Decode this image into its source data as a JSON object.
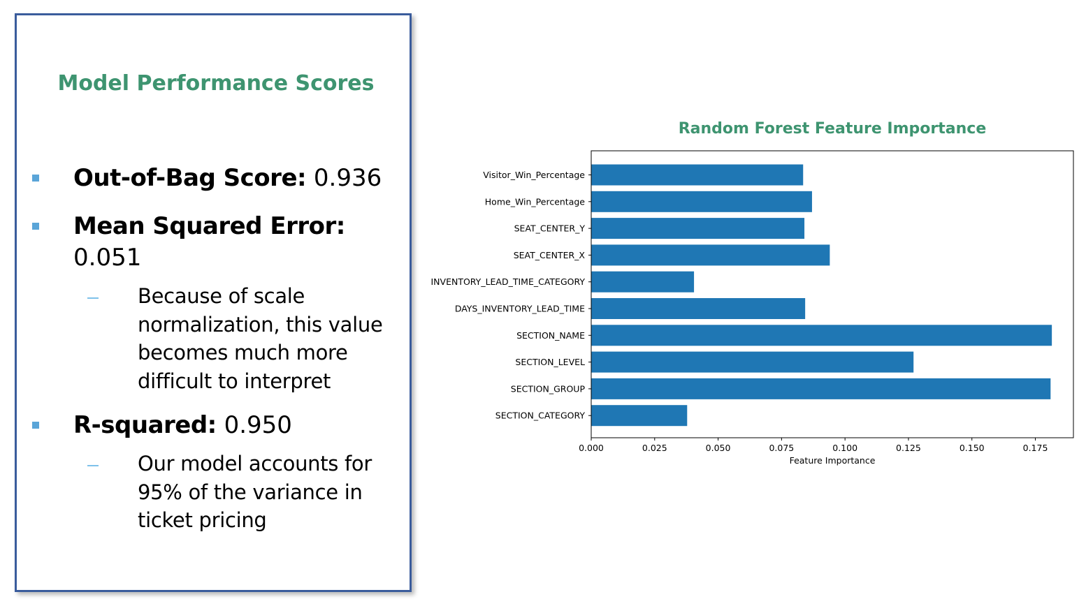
{
  "panel": {
    "title": "Model Performance Scores",
    "oob": {
      "label": "Out-of-Bag Score:",
      "value": " 0.936"
    },
    "mse": {
      "label": "Mean Squared Error:",
      "value": "0.051",
      "note": [
        "Because of scale",
        "normalization, this value",
        "becomes much more",
        "difficult to interpret"
      ]
    },
    "r2": {
      "label": "R-squared:",
      "value": " 0.950",
      "note": [
        "Our model accounts for",
        "95% of the variance in",
        "ticket pricing"
      ]
    }
  },
  "colors": {
    "title": "#3e9470",
    "bar": "#1f77b4",
    "bullet": "#5aa5d8",
    "dash": "#7ec1ea",
    "panel_border": "#3a5c9c"
  },
  "chart_data": {
    "type": "bar",
    "orientation": "horizontal",
    "title": "Random Forest Feature Importance",
    "xlabel": "Feature Importance",
    "ylabel": "",
    "categories": [
      "Visitor_Win_Percentage",
      "Home_Win_Percentage",
      "SEAT_CENTER_Y",
      "SEAT_CENTER_X",
      "INVENTORY_LEAD_TIME_CATEGORY",
      "DAYS_INVENTORY_LEAD_TIME",
      "SECTION_NAME",
      "SECTION_LEVEL",
      "SECTION_GROUP",
      "SECTION_CATEGORY"
    ],
    "values": [
      0.0835,
      0.087,
      0.084,
      0.094,
      0.0405,
      0.0843,
      0.1815,
      0.127,
      0.181,
      0.0378
    ],
    "xlim": [
      0,
      0.19
    ],
    "xticks": [
      0.0,
      0.025,
      0.05,
      0.075,
      0.1,
      0.125,
      0.15,
      0.175
    ],
    "xtick_labels": [
      "0.000",
      "0.025",
      "0.050",
      "0.075",
      "0.100",
      "0.125",
      "0.150",
      "0.175"
    ],
    "grid": false,
    "legend": "none"
  }
}
